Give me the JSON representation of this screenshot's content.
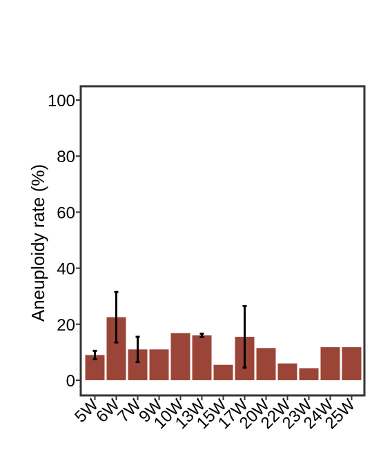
{
  "chart_data": {
    "type": "bar",
    "title": "",
    "xlabel": "",
    "ylabel": "Aneuploidy rate (%)",
    "ylim": [
      0,
      100
    ],
    "yticks": [
      0,
      20,
      40,
      60,
      80,
      100
    ],
    "grid": false,
    "legend": "none",
    "categories": [
      "5W",
      "6W",
      "7W",
      "9W",
      "10W",
      "13W",
      "15W",
      "17W",
      "20W",
      "22W",
      "23W",
      "24W",
      "25W"
    ],
    "series": [
      {
        "values": [
          9,
          22.5,
          11,
          11,
          16.8,
          16,
          5.5,
          15.5,
          11.5,
          6,
          4.3,
          11.8,
          11.8
        ],
        "error": [
          1.5,
          9,
          4.5,
          0,
          0,
          0.6,
          0,
          11,
          0,
          0,
          0,
          0,
          0
        ]
      }
    ],
    "colors": {
      "bar": "#9b4538",
      "error_bar": "#000000",
      "frame": "#333333"
    }
  }
}
